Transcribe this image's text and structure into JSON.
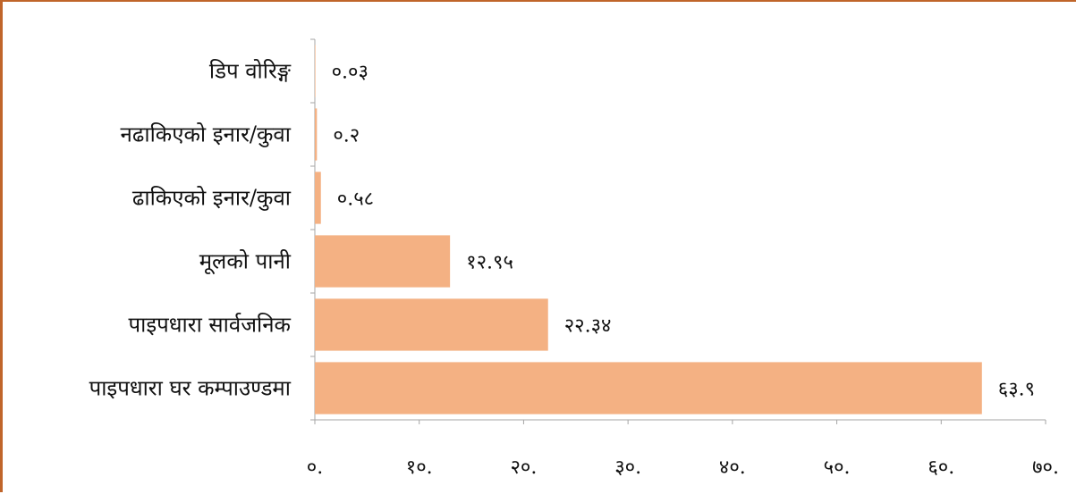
{
  "chart_data": {
    "type": "bar",
    "orientation": "horizontal",
    "categories": [
      "डिप वोरिङ्ग",
      "नढाकिएको इनार/कुवा",
      "ढाकिएको इनार/कुवा",
      "मूलको पानी",
      "पाइपधारा सार्वजनिक",
      "पाइपधारा घर कम्पाउण्डमा"
    ],
    "values": [
      0.03,
      0.2,
      0.58,
      12.95,
      22.34,
      63.9
    ],
    "value_labels": [
      "०.०३",
      "०.२",
      "०.५८",
      "१२.९५",
      "२२.३४",
      "६३.९"
    ],
    "xlim": [
      0,
      70
    ],
    "x_ticks": [
      0,
      10,
      20,
      30,
      40,
      50,
      60,
      70
    ],
    "x_tick_labels": [
      "०.",
      "१०.",
      "२०.",
      "३०.",
      "४०.",
      "५०.",
      "६०.",
      "७०."
    ],
    "title": "",
    "xlabel": "",
    "ylabel": "",
    "grid": false,
    "legend": "none",
    "bar_color": "#f4b183",
    "border_color": "#c0652a",
    "axis_color": "#a6a6a6"
  }
}
